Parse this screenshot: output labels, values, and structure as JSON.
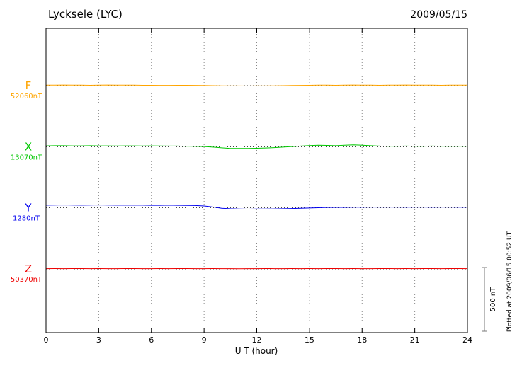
{
  "chart_data": {
    "type": "line",
    "title": "Lycksele (LYC)",
    "date": "2009/05/15",
    "xlabel": "U T (hour)",
    "x_ticks": [
      0,
      3,
      6,
      9,
      12,
      15,
      18,
      21,
      24
    ],
    "x_range": [
      0,
      24
    ],
    "x_step_hours": 0.5,
    "x_samples": [
      0,
      0.5,
      1,
      1.5,
      2,
      2.5,
      3,
      3.5,
      4,
      4.5,
      5,
      5.5,
      6,
      6.5,
      7,
      7.5,
      8,
      8.5,
      9,
      9.5,
      10,
      10.5,
      11,
      11.5,
      12,
      12.5,
      13,
      13.5,
      14,
      14.5,
      15,
      15.5,
      16,
      16.5,
      17,
      17.5,
      18,
      18.5,
      19,
      19.5,
      20,
      20.5,
      21,
      21.5,
      22,
      22.5,
      23,
      23.5,
      24
    ],
    "scale_bar": {
      "label": "500 nT",
      "nT": 500
    },
    "footnote": "Plotted at 2009/06/15 00:52 UT",
    "series": [
      {
        "name": "F",
        "baseline_label": "52060nT",
        "baseline_nT": 52060,
        "color": "#FFA500",
        "offsets_nT": [
          4,
          4,
          5,
          4,
          4,
          3,
          4,
          5,
          4,
          4,
          4,
          3,
          3,
          2,
          2,
          3,
          3,
          2,
          1,
          0,
          -1,
          -2,
          -2,
          -3,
          -2,
          -2,
          -1,
          0,
          1,
          2,
          3,
          4,
          4,
          3,
          4,
          5,
          4,
          4,
          3,
          4,
          4,
          5,
          4,
          4,
          4,
          3,
          4,
          4,
          4
        ]
      },
      {
        "name": "X",
        "baseline_label": "13070nT",
        "baseline_nT": 13070,
        "color": "#00C800",
        "offsets_nT": [
          8,
          9,
          9,
          8,
          8,
          9,
          8,
          8,
          7,
          8,
          8,
          7,
          8,
          7,
          6,
          6,
          5,
          4,
          2,
          -2,
          -8,
          -12,
          -13,
          -12,
          -11,
          -9,
          -6,
          -2,
          2,
          6,
          10,
          13,
          11,
          9,
          12,
          15,
          13,
          9,
          6,
          5,
          5,
          6,
          5,
          5,
          6,
          5,
          5,
          5,
          5
        ]
      },
      {
        "name": "Y",
        "baseline_label": "1280nT",
        "baseline_nT": 1280,
        "color": "#0000EE",
        "offsets_nT": [
          20,
          21,
          22,
          21,
          20,
          21,
          22,
          21,
          20,
          20,
          21,
          20,
          19,
          19,
          20,
          19,
          18,
          17,
          14,
          6,
          -4,
          -8,
          -10,
          -11,
          -10,
          -10,
          -9,
          -8,
          -6,
          -4,
          -2,
          0,
          2,
          3,
          3,
          4,
          4,
          5,
          5,
          5,
          5,
          4,
          5,
          5,
          4,
          5,
          5,
          4,
          4
        ]
      },
      {
        "name": "Z",
        "baseline_label": "50370nT",
        "baseline_nT": 50370,
        "color": "#EE0000",
        "offsets_nT": [
          2,
          3,
          2,
          3,
          3,
          2,
          3,
          2,
          2,
          3,
          3,
          2,
          2,
          3,
          2,
          3,
          3,
          2,
          2,
          3,
          2,
          2,
          1,
          2,
          2,
          3,
          2,
          2,
          3,
          2,
          3,
          2,
          3,
          3,
          2,
          3,
          2,
          2,
          3,
          3,
          2,
          3,
          2,
          3,
          3,
          2,
          3,
          3,
          2
        ]
      }
    ]
  }
}
